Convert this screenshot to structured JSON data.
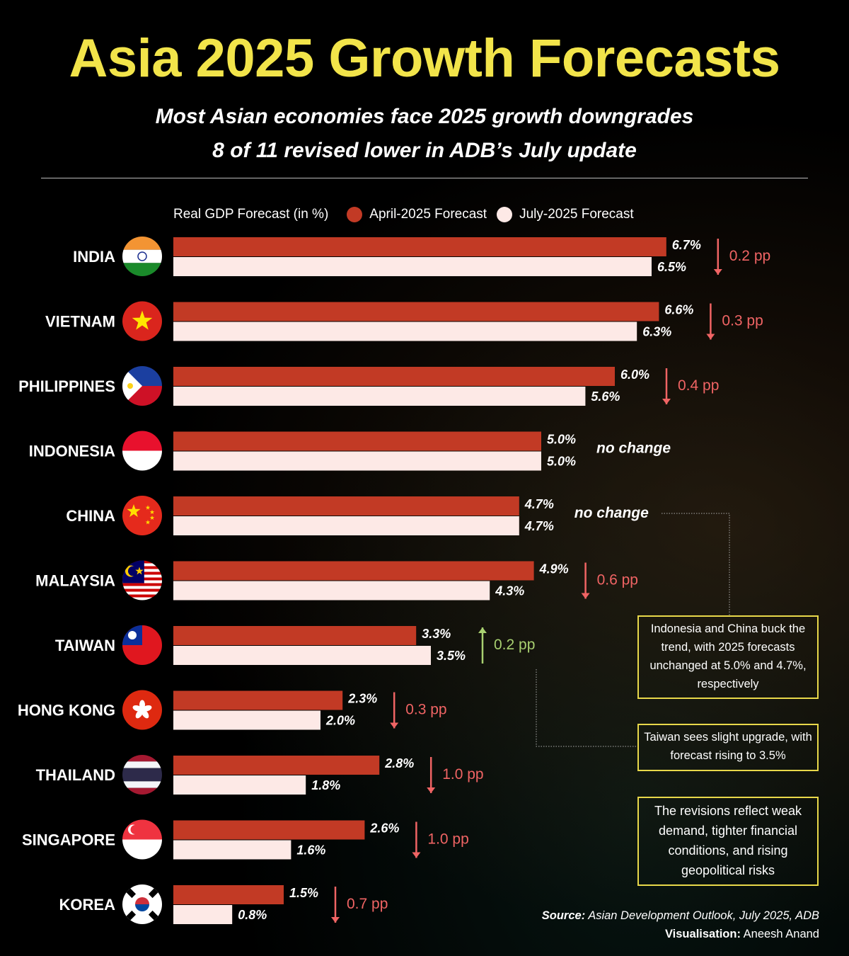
{
  "title": "Asia 2025 Growth Forecasts",
  "subtitle_lines": [
    "Most Asian economies face 2025 growth downgrades",
    "8 of 11 revised lower in ADB’s July update"
  ],
  "colors": {
    "title": "#f2e44a",
    "april": "#c23a25",
    "july": "#fde9e6",
    "down": "#f06464",
    "up": "#a8d070",
    "callout_border": "#e8d84a"
  },
  "chart_data": {
    "type": "bar",
    "orientation": "horizontal",
    "ylabel": "Real GDP Forecast (in %)",
    "legend_placement": "top",
    "categories": [
      "INDIA",
      "VIETNAM",
      "PHILIPPINES",
      "INDONESIA",
      "CHINA",
      "MALAYSIA",
      "TAIWAN",
      "HONG KONG",
      "THAILAND",
      "SINGAPORE",
      "KOREA"
    ],
    "flags": [
      "india",
      "vietnam",
      "philippines",
      "indonesia",
      "china",
      "malaysia",
      "taiwan",
      "hongkong",
      "thailand",
      "singapore",
      "korea"
    ],
    "series": [
      {
        "name": "April-2025 Forecast",
        "values": [
          6.7,
          6.6,
          6.0,
          5.0,
          4.7,
          4.9,
          3.3,
          2.3,
          2.8,
          2.6,
          1.5
        ],
        "labels": [
          "6.7%",
          "6.6%",
          "6.0%",
          "5.0%",
          "4.7%",
          "4.9%",
          "3.3%",
          "2.3%",
          "2.8%",
          "2.6%",
          "1.5%"
        ]
      },
      {
        "name": "July-2025 Forecast",
        "values": [
          6.5,
          6.3,
          5.6,
          5.0,
          4.7,
          4.3,
          3.5,
          2.0,
          1.8,
          1.6,
          0.8
        ],
        "labels": [
          "6.5%",
          "6.3%",
          "5.6%",
          "5.0%",
          "4.7%",
          "4.3%",
          "3.5%",
          "2.0%",
          "1.8%",
          "1.6%",
          "0.8%"
        ]
      }
    ],
    "changes": [
      {
        "text": "0.2 pp",
        "direction": "down"
      },
      {
        "text": "0.3 pp",
        "direction": "down"
      },
      {
        "text": "0.4 pp",
        "direction": "down"
      },
      {
        "text": "no change",
        "direction": "none"
      },
      {
        "text": "no change",
        "direction": "none"
      },
      {
        "text": "0.6 pp",
        "direction": "down"
      },
      {
        "text": "0.2 pp",
        "direction": "up"
      },
      {
        "text": "0.3 pp",
        "direction": "down"
      },
      {
        "text": "1.0 pp",
        "direction": "down"
      },
      {
        "text": "1.0 pp",
        "direction": "down"
      },
      {
        "text": "0.7 pp",
        "direction": "down"
      }
    ]
  },
  "callouts": [
    "Indonesia and China buck the trend, with 2025 forecasts unchanged at 5.0% and 4.7%, respectively",
    "Taiwan sees slight upgrade, with forecast rising to 3.5%",
    "The revisions reflect weak demand, tighter financial conditions, and rising geopolitical risks"
  ],
  "source": {
    "label": "Source:",
    "text": "Asian Development Outlook, July 2025, ADB",
    "vis_label": "Visualisation:",
    "vis_text": "Aneesh Anand"
  }
}
